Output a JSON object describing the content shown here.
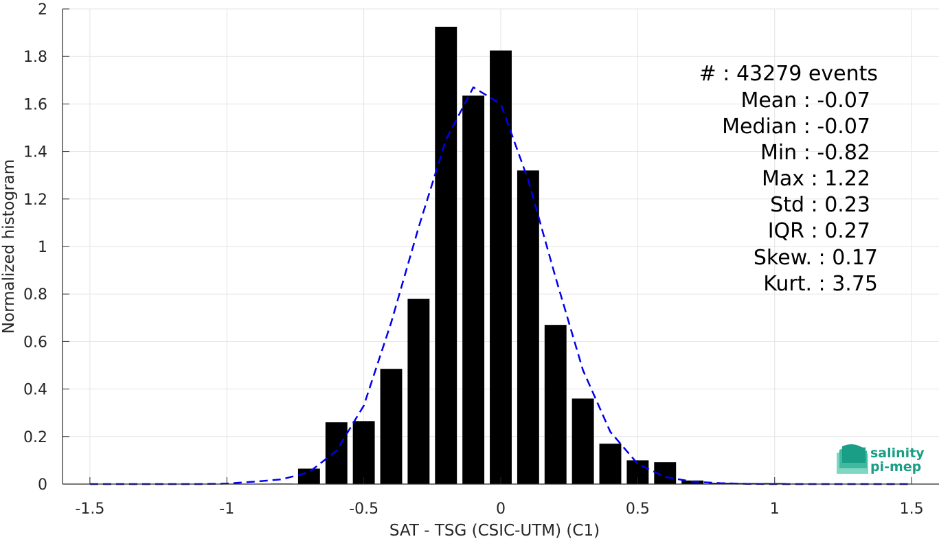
{
  "chart_data": {
    "type": "bar",
    "xlabel": "SAT - TSG (CSIC-UTM) (C1)",
    "ylabel": "Normalized histogram",
    "xlim": [
      -1.6,
      1.6
    ],
    "ylim": [
      0,
      2
    ],
    "xticks": [
      -1.5,
      -1,
      -0.5,
      0,
      0.5,
      1,
      1.5
    ],
    "xtick_labels": [
      "-1.5",
      "-1",
      "-0.5",
      "0",
      "0.5",
      "1",
      "1.5"
    ],
    "yticks": [
      0,
      0.2,
      0.4,
      0.6,
      0.8,
      1,
      1.2,
      1.4,
      1.6,
      1.8,
      2
    ],
    "ytick_labels": [
      "0",
      "0.2",
      "0.4",
      "0.6",
      "0.8",
      "1",
      "1.2",
      "1.4",
      "1.6",
      "1.8",
      "2"
    ],
    "grid": true,
    "bar_color": "#000000",
    "bins": [
      -1.5,
      -1.4,
      -1.3,
      -1.2,
      -1.1,
      -1.0,
      -0.9,
      -0.8,
      -0.7,
      -0.6,
      -0.5,
      -0.4,
      -0.3,
      -0.2,
      -0.1,
      0.0,
      0.1,
      0.2,
      0.3,
      0.4,
      0.5,
      0.6,
      0.7,
      0.8,
      0.9,
      1.0,
      1.1,
      1.2,
      1.3,
      1.4,
      1.5
    ],
    "values": [
      0,
      0,
      0,
      0,
      0,
      0,
      0,
      0.002,
      0.065,
      0.26,
      0.265,
      0.485,
      0.78,
      1.925,
      1.635,
      1.825,
      1.32,
      0.67,
      0.36,
      0.17,
      0.1,
      0.092,
      0.015,
      0.005,
      0.004,
      0.004,
      0.002,
      0,
      0,
      0,
      0
    ],
    "fit_curve": {
      "color": "#0000ee",
      "style": "dashed",
      "x": [
        -1.5,
        -1.3,
        -1.1,
        -1.0,
        -0.9,
        -0.8,
        -0.7,
        -0.6,
        -0.5,
        -0.4,
        -0.3,
        -0.2,
        -0.1,
        0.0,
        0.1,
        0.2,
        0.3,
        0.4,
        0.5,
        0.6,
        0.7,
        0.8,
        0.9,
        1.0,
        1.1,
        1.3,
        1.5
      ],
      "y": [
        0,
        0,
        0,
        0.002,
        0.01,
        0.02,
        0.05,
        0.14,
        0.33,
        0.68,
        1.08,
        1.45,
        1.67,
        1.6,
        1.28,
        0.87,
        0.48,
        0.22,
        0.085,
        0.03,
        0.01,
        0.004,
        0.001,
        0,
        0,
        0,
        0
      ]
    }
  },
  "stats": {
    "events": "#  : 43279 events",
    "mean": "Mean : -0.07",
    "median": "Median : -0.07",
    "min": "Min : -0.82",
    "max": "Max : 1.22",
    "std": "Std : 0.23",
    "iqr": "IQR : 0.27",
    "skew": "Skew. : 0.17",
    "kurt": "Kurt. : 3.75"
  },
  "logo": {
    "line1": "salinity",
    "line2": "pi-mep",
    "color": "#1a9e86"
  }
}
